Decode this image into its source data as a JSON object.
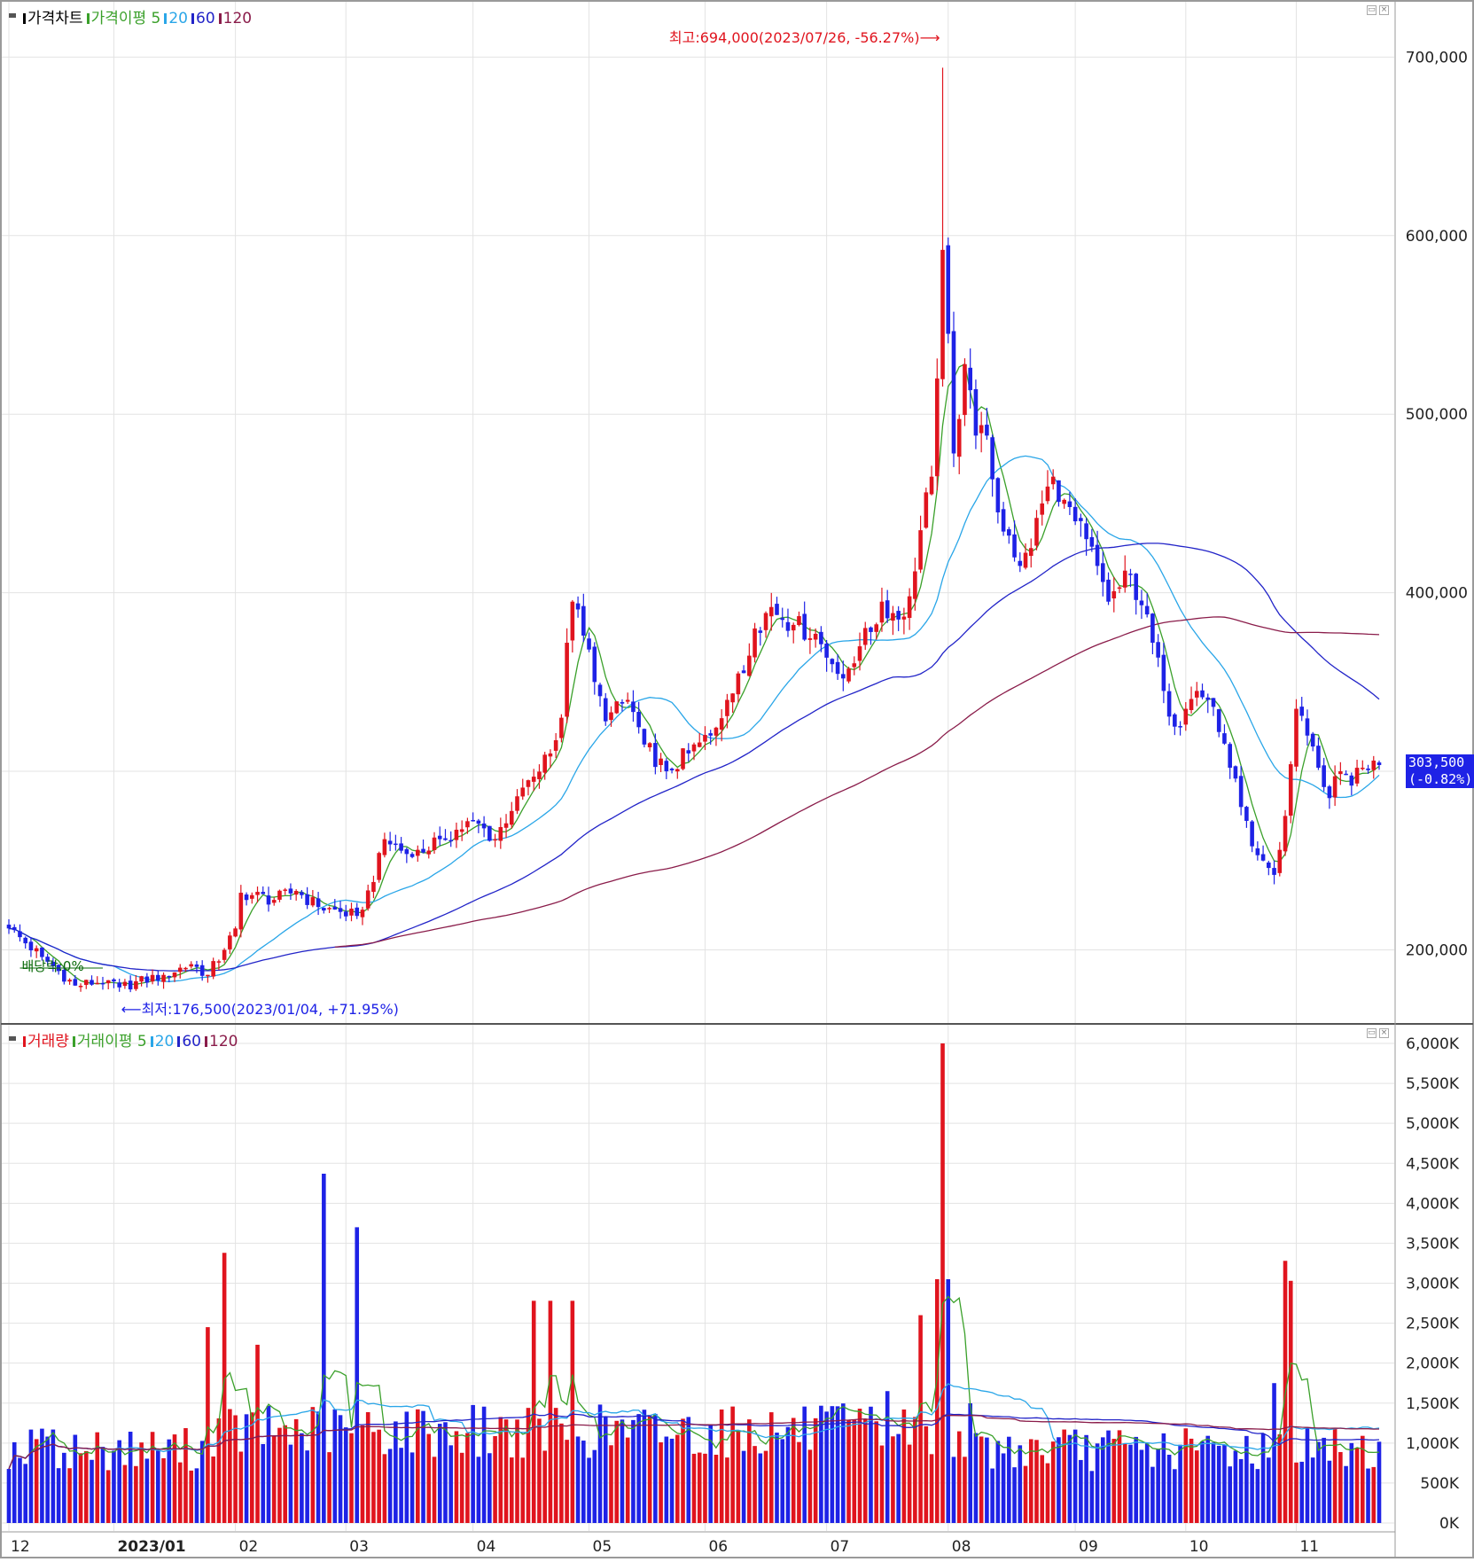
{
  "chart_data": [
    {
      "type": "candlestick",
      "legend": {
        "title": "가격차트",
        "ma_label": "가격이평",
        "periods": [
          "5",
          "20",
          "60",
          "120"
        ],
        "colors": [
          "#3aa02a",
          "#2aa6e8",
          "#2224c8",
          "#8a1c4a"
        ]
      },
      "ylim": [
        165000,
        722000
      ],
      "yticks": [
        200000,
        300000,
        400000,
        500000,
        600000,
        700000
      ],
      "ytick_labels": [
        "200,000",
        "300,000",
        "400,000",
        "500,000",
        "600,000",
        "700,000"
      ],
      "anchors": [
        [
          0,
          212000
        ],
        [
          6,
          196000
        ],
        [
          12,
          180000
        ],
        [
          18,
          183000
        ],
        [
          20,
          179000
        ],
        [
          28,
          186000
        ],
        [
          33,
          192000
        ],
        [
          36,
          186000
        ],
        [
          39,
          200000
        ],
        [
          41,
          212000
        ],
        [
          42,
          232000
        ],
        [
          48,
          228000
        ],
        [
          52,
          233000
        ],
        [
          56,
          224000
        ],
        [
          63,
          219000
        ],
        [
          66,
          238000
        ],
        [
          68,
          262000
        ],
        [
          73,
          252000
        ],
        [
          78,
          262000
        ],
        [
          84,
          272000
        ],
        [
          88,
          262000
        ],
        [
          92,
          286000
        ],
        [
          95,
          297000
        ],
        [
          98,
          310000
        ],
        [
          100,
          330000
        ],
        [
          101,
          372000
        ],
        [
          102,
          395000
        ],
        [
          104,
          376000
        ],
        [
          106,
          350000
        ],
        [
          108,
          328000
        ],
        [
          112,
          340000
        ],
        [
          115,
          315000
        ],
        [
          119,
          300000
        ],
        [
          123,
          310000
        ],
        [
          127,
          320000
        ],
        [
          130,
          340000
        ],
        [
          133,
          355000
        ],
        [
          135,
          380000
        ],
        [
          138,
          392000
        ],
        [
          142,
          382000
        ],
        [
          146,
          377000
        ],
        [
          149,
          360000
        ],
        [
          151,
          352000
        ],
        [
          154,
          370000
        ],
        [
          156,
          378000
        ],
        [
          158,
          395000
        ],
        [
          161,
          385000
        ],
        [
          163,
          398000
        ],
        [
          165,
          435000
        ],
        [
          167,
          465000
        ],
        [
          168,
          520000
        ],
        [
          169,
          592000
        ],
        [
          170,
          545000
        ],
        [
          171,
          478000
        ],
        [
          173,
          528000
        ],
        [
          175,
          488000
        ],
        [
          177,
          488000
        ],
        [
          179,
          445000
        ],
        [
          181,
          432000
        ],
        [
          183,
          415000
        ],
        [
          185,
          425000
        ],
        [
          187,
          450000
        ],
        [
          189,
          465000
        ],
        [
          191,
          452000
        ],
        [
          193,
          440000
        ],
        [
          195,
          430000
        ],
        [
          197,
          415000
        ],
        [
          199,
          395000
        ],
        [
          201,
          403000
        ],
        [
          203,
          410000
        ],
        [
          205,
          393000
        ],
        [
          207,
          372000
        ],
        [
          209,
          345000
        ],
        [
          211,
          325000
        ],
        [
          213,
          335000
        ],
        [
          215,
          345000
        ],
        [
          217,
          340000
        ],
        [
          219,
          322000
        ],
        [
          221,
          302000
        ],
        [
          223,
          280000
        ],
        [
          225,
          258000
        ],
        [
          227,
          250000
        ],
        [
          229,
          242000
        ],
        [
          231,
          275000
        ],
        [
          233,
          335000
        ],
        [
          235,
          320000
        ],
        [
          237,
          302000
        ],
        [
          239,
          285000
        ],
        [
          241,
          300000
        ],
        [
          243,
          292000
        ],
        [
          245,
          302000
        ],
        [
          247,
          306000
        ],
        [
          248,
          303500
        ]
      ],
      "high_annotation": "최고:694,000(2023/07/26, -56.27%)⟶",
      "low_annotation": "⟵최저:176,500(2023/01/04, +71.95%)",
      "dividend_label": "배당락:0%",
      "last_price": "303,500",
      "last_change": "(-0.82%)"
    },
    {
      "type": "bar",
      "legend": {
        "title": "거래량",
        "ma_label": "거래이평",
        "periods": [
          "5",
          "20",
          "60",
          "120"
        ],
        "colors": [
          "#3aa02a",
          "#2aa6e8",
          "#2224c8",
          "#8a1c4a"
        ]
      },
      "ylim": [
        0,
        6100
      ],
      "yticks": [
        0,
        500,
        1000,
        1500,
        2000,
        2500,
        3000,
        3500,
        4000,
        4500,
        5000,
        5500,
        6000
      ],
      "ytick_labels": [
        "0K",
        "500K",
        "1,000K",
        "1,500K",
        "2,000K",
        "2,500K",
        "3,000K",
        "3,500K",
        "4,000K",
        "4,500K",
        "5,000K",
        "5,500K",
        "6,000K"
      ],
      "spikes": [
        [
          6,
          1180
        ],
        [
          36,
          2450
        ],
        [
          39,
          3380
        ],
        [
          45,
          2230
        ],
        [
          57,
          4370
        ],
        [
          63,
          3700
        ],
        [
          95,
          2780
        ],
        [
          98,
          2780
        ],
        [
          102,
          2780
        ],
        [
          159,
          1650
        ],
        [
          165,
          2600
        ],
        [
          168,
          3050
        ],
        [
          169,
          6000
        ],
        [
          170,
          3050
        ],
        [
          229,
          1750
        ],
        [
          231,
          3280
        ],
        [
          232,
          3030
        ],
        [
          243,
          1000
        ],
        [
          247,
          700
        ]
      ]
    }
  ],
  "x_labels": [
    "12",
    "2023/01",
    "02",
    "03",
    "04",
    "05",
    "06",
    "07",
    "08",
    "09",
    "10",
    "11"
  ]
}
